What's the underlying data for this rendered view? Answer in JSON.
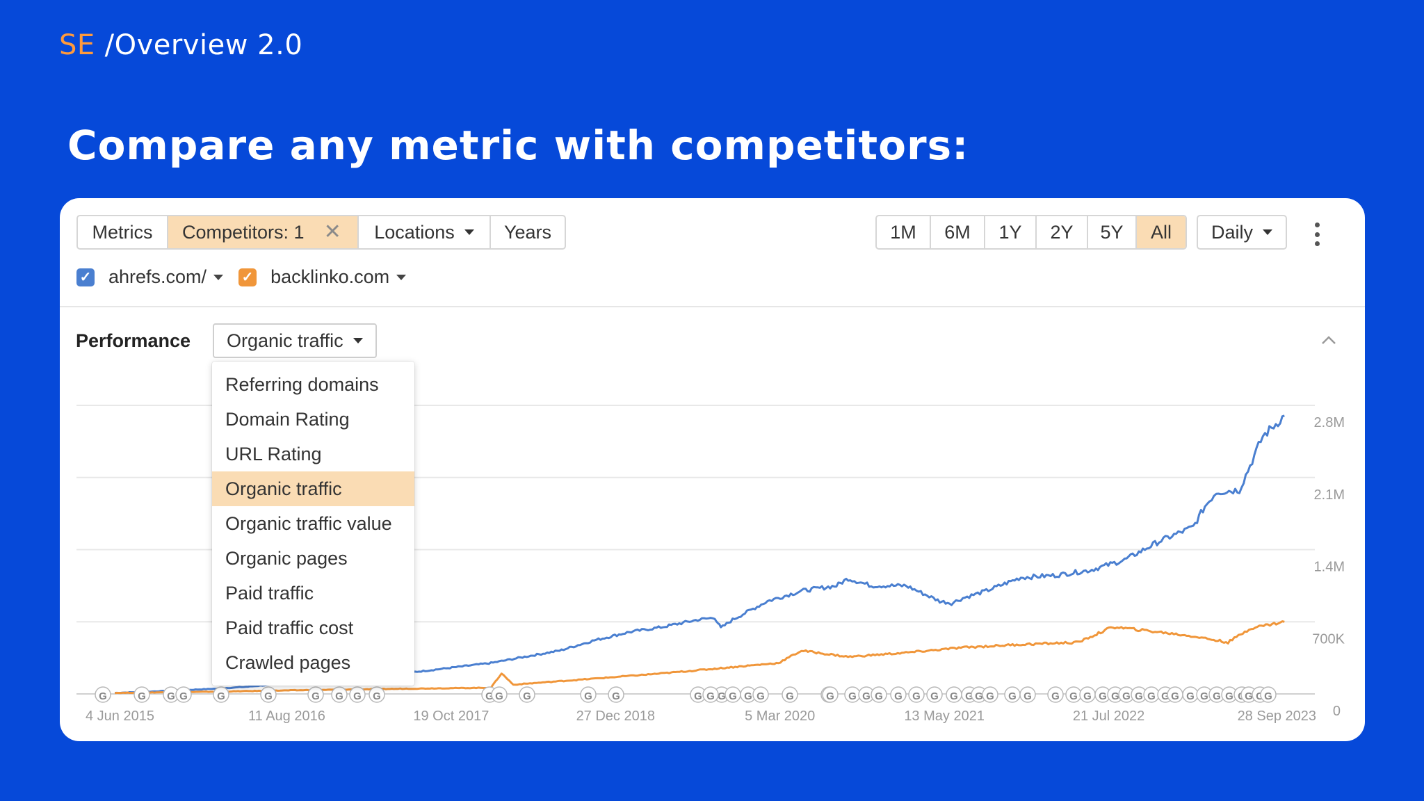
{
  "brand": {
    "prefix": "SE",
    "title": "/Overview 2.0"
  },
  "headline": "Compare any metric with competitors:",
  "toolbar": {
    "metrics_label": "Metrics",
    "competitors_label": "Competitors: 1",
    "locations_label": "Locations",
    "years_label": "Years",
    "ranges": [
      "1M",
      "6M",
      "1Y",
      "2Y",
      "5Y",
      "All"
    ],
    "active_range": "All",
    "granularity": "Daily"
  },
  "domains": [
    {
      "name": "ahrefs.com/",
      "color": "#4a7fd0",
      "checked": true
    },
    {
      "name": "backlinko.com",
      "color": "#f0963a",
      "checked": true
    }
  ],
  "performance": {
    "label": "Performance",
    "selected_metric": "Organic traffic",
    "options": [
      "Referring domains",
      "Domain Rating",
      "URL Rating",
      "Organic traffic",
      "Organic traffic value",
      "Organic pages",
      "Paid traffic",
      "Paid traffic cost",
      "Crawled pages"
    ]
  },
  "chart_data": {
    "type": "line",
    "y_tick_labels": [
      "0",
      "700K",
      "1.4M",
      "2.1M",
      "2.8M"
    ],
    "y_ticks": [
      0,
      700000,
      1400000,
      2100000,
      2800000
    ],
    "ylim": [
      0,
      2800000
    ],
    "x_tick_labels": [
      "4 Jun 2015",
      "11 Aug 2016",
      "19 Oct 2017",
      "27 Dec 2018",
      "5 Mar 2020",
      "13 May 2021",
      "21 Jul 2022",
      "28 Sep 2023"
    ],
    "x_ticks": [
      "2015-06-04",
      "2016-08-11",
      "2017-10-19",
      "2018-12-27",
      "2020-03-05",
      "2021-05-13",
      "2022-07-21",
      "2023-09-28"
    ],
    "series": [
      {
        "name": "ahrefs.com/",
        "color": "#4a7fd0",
        "x": [
          "2015-05-15",
          "2015-08-01",
          "2015-11-01",
          "2016-02-01",
          "2016-05-01",
          "2016-08-01",
          "2016-11-01",
          "2017-02-01",
          "2017-05-01",
          "2017-08-01",
          "2017-11-01",
          "2018-02-01",
          "2018-05-01",
          "2018-08-01",
          "2018-11-01",
          "2019-02-01",
          "2019-05-01",
          "2019-08-01",
          "2019-09-15",
          "2019-10-01",
          "2019-11-01",
          "2020-02-01",
          "2020-05-01",
          "2020-08-01",
          "2020-09-01",
          "2020-11-01",
          "2021-02-01",
          "2021-05-01",
          "2021-06-01",
          "2021-07-01",
          "2021-09-01",
          "2021-12-01",
          "2022-03-01",
          "2022-06-01",
          "2022-09-01",
          "2022-12-01",
          "2023-03-01",
          "2023-04-01",
          "2023-05-01",
          "2023-07-01",
          "2023-09-01",
          "2023-10-28"
        ],
        "values": [
          10000,
          20000,
          35000,
          50000,
          70000,
          100000,
          130000,
          160000,
          190000,
          220000,
          260000,
          300000,
          360000,
          420000,
          520000,
          600000,
          650000,
          720000,
          740000,
          640000,
          720000,
          900000,
          1000000,
          1050000,
          1120000,
          1050000,
          1050000,
          900000,
          880000,
          930000,
          1000000,
          1130000,
          1150000,
          1200000,
          1300000,
          1480000,
          1620000,
          1820000,
          1960000,
          1980000,
          2500000,
          2700000
        ]
      },
      {
        "name": "backlinko.com",
        "color": "#f0963a",
        "x": [
          "2015-05-15",
          "2016-01-01",
          "2016-09-01",
          "2017-06-01",
          "2018-02-01",
          "2018-03-01",
          "2018-04-01",
          "2018-10-01",
          "2019-05-01",
          "2019-10-01",
          "2020-03-01",
          "2020-05-01",
          "2020-09-01",
          "2021-02-01",
          "2021-07-01",
          "2021-12-01",
          "2022-05-01",
          "2022-08-01",
          "2022-12-01",
          "2023-03-01",
          "2023-06-01",
          "2023-08-01",
          "2023-10-28"
        ],
        "values": [
          10000,
          20000,
          35000,
          50000,
          60000,
          200000,
          90000,
          140000,
          200000,
          250000,
          300000,
          420000,
          360000,
          400000,
          450000,
          480000,
          500000,
          650000,
          600000,
          560000,
          500000,
          640000,
          700000
        ]
      }
    ],
    "annotation_markers": "G"
  }
}
